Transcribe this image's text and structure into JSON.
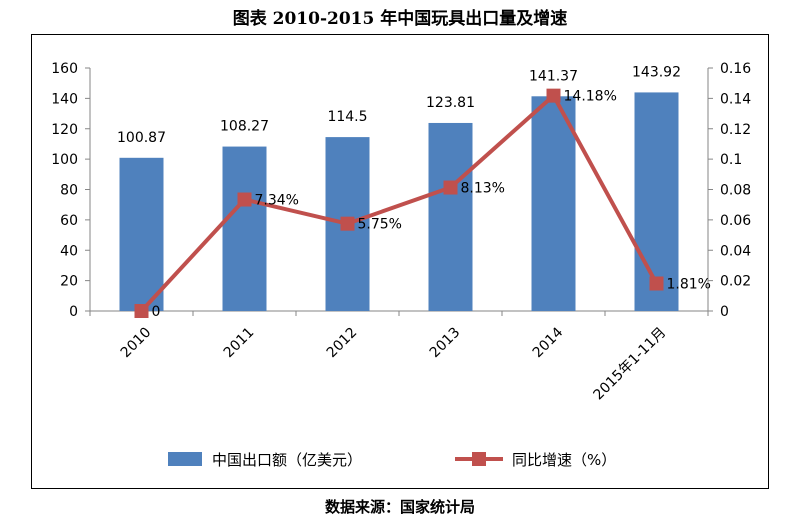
{
  "page": {
    "title": "图表    2010-2015 年中国玩具出口量及增速",
    "source": "数据来源：国家统计局"
  },
  "chart_data": {
    "type": "bar",
    "categories": [
      "2010",
      "2011",
      "2012",
      "2013",
      "2014",
      "2015年1-11月"
    ],
    "series": [
      {
        "name": "中国出口额（亿美元）",
        "type": "bar",
        "axis": "left",
        "values": [
          100.87,
          108.27,
          114.5,
          123.81,
          141.37,
          143.92
        ],
        "labels": [
          "100.87",
          "108.27",
          "114.5",
          "123.81",
          "141.37",
          "143.92"
        ],
        "color": "#4f81bd"
      },
      {
        "name": "同比增速（%）",
        "type": "line",
        "axis": "right",
        "values": [
          0,
          0.0734,
          0.0575,
          0.0813,
          0.1418,
          0.0181
        ],
        "labels": [
          "0",
          "7.34%",
          "5.75%",
          "8.13%",
          "14.18%",
          "1.81%"
        ],
        "color": "#c0504d"
      }
    ],
    "y_left": {
      "ylim": [
        0,
        160
      ],
      "ticks": [
        "0",
        "20",
        "40",
        "60",
        "80",
        "100",
        "120",
        "140",
        "160"
      ]
    },
    "y_right": {
      "ylim": [
        0,
        0.16
      ],
      "ticks": [
        "0",
        "0.02",
        "0.04",
        "0.06",
        "0.08",
        "0.1",
        "0.12",
        "0.14",
        "0.16"
      ]
    },
    "grid": false,
    "legend_position": "bottom"
  }
}
